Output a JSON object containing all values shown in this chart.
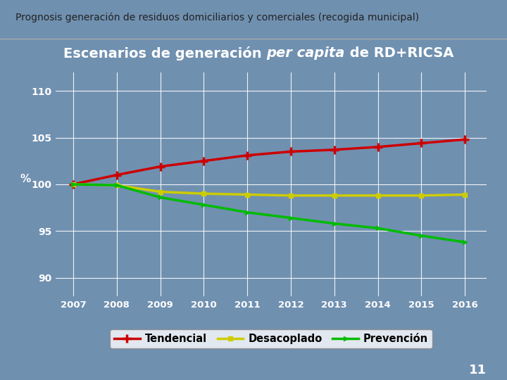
{
  "title_slide": "Prognosis generación de residuos domiciliarios y comerciales (recogida municipal)",
  "chart_title_plain": "Escenarios de generación ",
  "chart_title_italic": "per capita",
  "chart_title_end": " de RD+RICSA",
  "ylabel": "%",
  "years": [
    2007,
    2008,
    2009,
    2010,
    2011,
    2012,
    2013,
    2014,
    2015,
    2016
  ],
  "tendencial": [
    100.0,
    101.0,
    101.9,
    102.5,
    103.1,
    103.5,
    103.7,
    104.0,
    104.4,
    104.8
  ],
  "desacoplado": [
    100.0,
    99.9,
    99.2,
    99.0,
    98.9,
    98.8,
    98.8,
    98.8,
    98.8,
    98.9
  ],
  "prevencion": [
    100.0,
    99.9,
    98.6,
    97.8,
    97.0,
    96.4,
    95.8,
    95.3,
    94.5,
    93.8
  ],
  "ylim": [
    88,
    112
  ],
  "yticks": [
    90,
    95,
    100,
    105,
    110
  ],
  "bg_color": "#7090b0",
  "plot_bg_color": "#7090b0",
  "grid_color": "#ffffff",
  "text_color": "#ffffff",
  "tendencial_color": "#cc0000",
  "desacoplado_color": "#cccc00",
  "prevencion_color": "#00bb00",
  "slide_number": "11",
  "header_line_color": "#aabbcc"
}
